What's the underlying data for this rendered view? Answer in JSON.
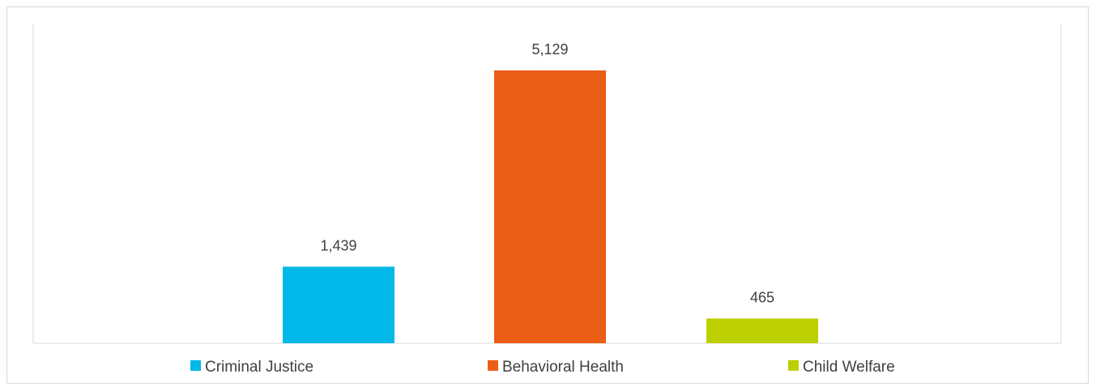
{
  "chart_data": {
    "type": "bar",
    "categories": [
      "Criminal Justice",
      "Behavioral Health",
      "Child Welfare"
    ],
    "values": [
      1439,
      5129,
      465
    ],
    "data_labels": [
      "1,439",
      "5,129",
      "465"
    ],
    "colors": [
      "#00b9e8",
      "#ea5e16",
      "#bccf00"
    ],
    "title": "",
    "xlabel": "",
    "ylabel": "",
    "ylim": [
      0,
      5600
    ],
    "grid": false,
    "legend": "bottom",
    "series": [
      {
        "name": "Criminal Justice",
        "color": "#00b9e8"
      },
      {
        "name": "Behavioral Health",
        "color": "#ea5e16"
      },
      {
        "name": "Child Welfare",
        "color": "#bccf00"
      }
    ]
  }
}
